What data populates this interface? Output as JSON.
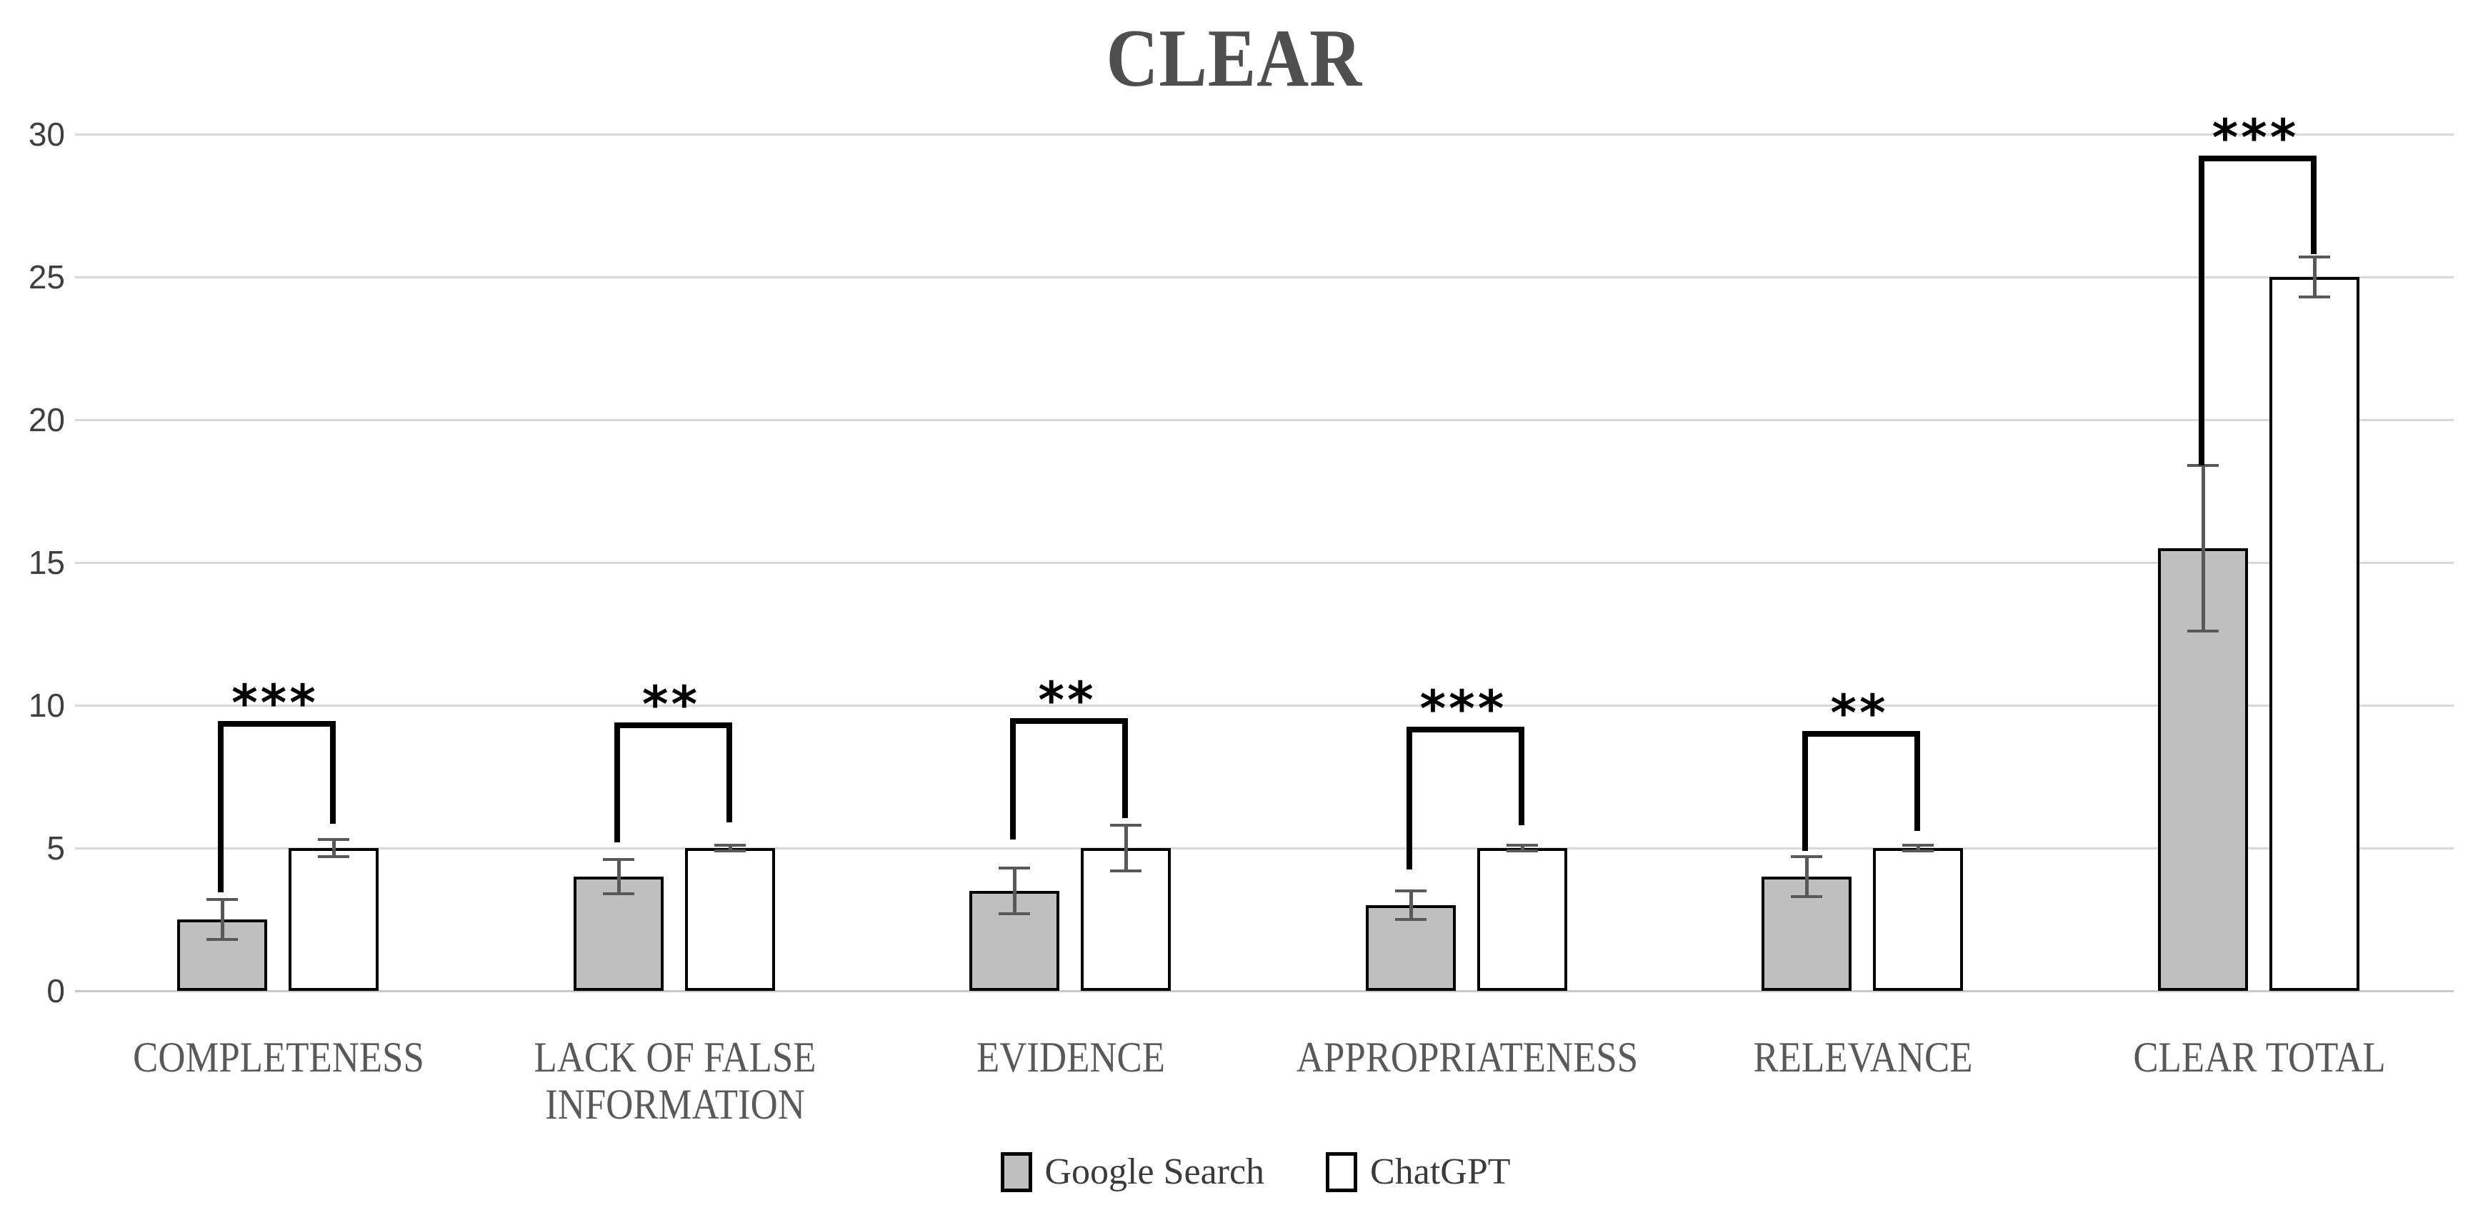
{
  "title": "CLEAR",
  "colors": {
    "title": "#4f4f4f",
    "axis_text": "#3f3f3f",
    "category_text": "#595959",
    "gridline": "#d9d9d9",
    "axis_line": "#c9c9c9",
    "bar_border": "#000000",
    "error_bar": "#595959",
    "google_search_fill": "#bfbfbf",
    "chatgpt_fill": "#ffffff",
    "significance": "#000000"
  },
  "chart_data": {
    "type": "bar",
    "title": "CLEAR",
    "xlabel": "",
    "ylabel": "",
    "ylim": [
      0,
      30
    ],
    "yticks": [
      0,
      5,
      10,
      15,
      20,
      25,
      30
    ],
    "grid": true,
    "legend_position": "bottom",
    "categories": [
      "COMPLETENESS",
      "LACK OF FALSE INFORMATION",
      "EVIDENCE",
      "APPROPRIATENESS",
      "RELEVANCE",
      "CLEAR TOTAL"
    ],
    "series": [
      {
        "name": "Google Search",
        "fill": "#bfbfbf",
        "values": [
          2.5,
          4.0,
          3.5,
          3.0,
          4.0,
          15.5
        ],
        "errors": [
          0.7,
          0.6,
          0.8,
          0.5,
          0.7,
          2.9
        ]
      },
      {
        "name": "ChatGPT",
        "fill": "#ffffff",
        "values": [
          5.0,
          5.0,
          5.0,
          5.0,
          5.0,
          25.0
        ],
        "errors": [
          0.3,
          0.1,
          0.8,
          0.1,
          0.1,
          0.7
        ]
      }
    ],
    "significance": [
      {
        "category": "COMPLETENESS",
        "label": "***",
        "bracket_top": 9.45,
        "left_arm_bottom": 3.45,
        "right_arm_bottom": 5.85
      },
      {
        "category": "LACK OF FALSE INFORMATION",
        "label": "**",
        "bracket_top": 9.4,
        "left_arm_bottom": 5.2,
        "right_arm_bottom": 5.9
      },
      {
        "category": "EVIDENCE",
        "label": "**",
        "bracket_top": 9.55,
        "left_arm_bottom": 5.3,
        "right_arm_bottom": 6.05
      },
      {
        "category": "APPROPRIATENESS",
        "label": "***",
        "bracket_top": 9.25,
        "left_arm_bottom": 4.25,
        "right_arm_bottom": 5.8
      },
      {
        "category": "RELEVANCE",
        "label": "**",
        "bracket_top": 9.1,
        "left_arm_bottom": 4.9,
        "right_arm_bottom": 5.6
      },
      {
        "category": "CLEAR TOTAL",
        "label": "***",
        "bracket_top": 29.25,
        "left_arm_bottom": 18.4,
        "right_arm_bottom": 25.8
      }
    ]
  }
}
